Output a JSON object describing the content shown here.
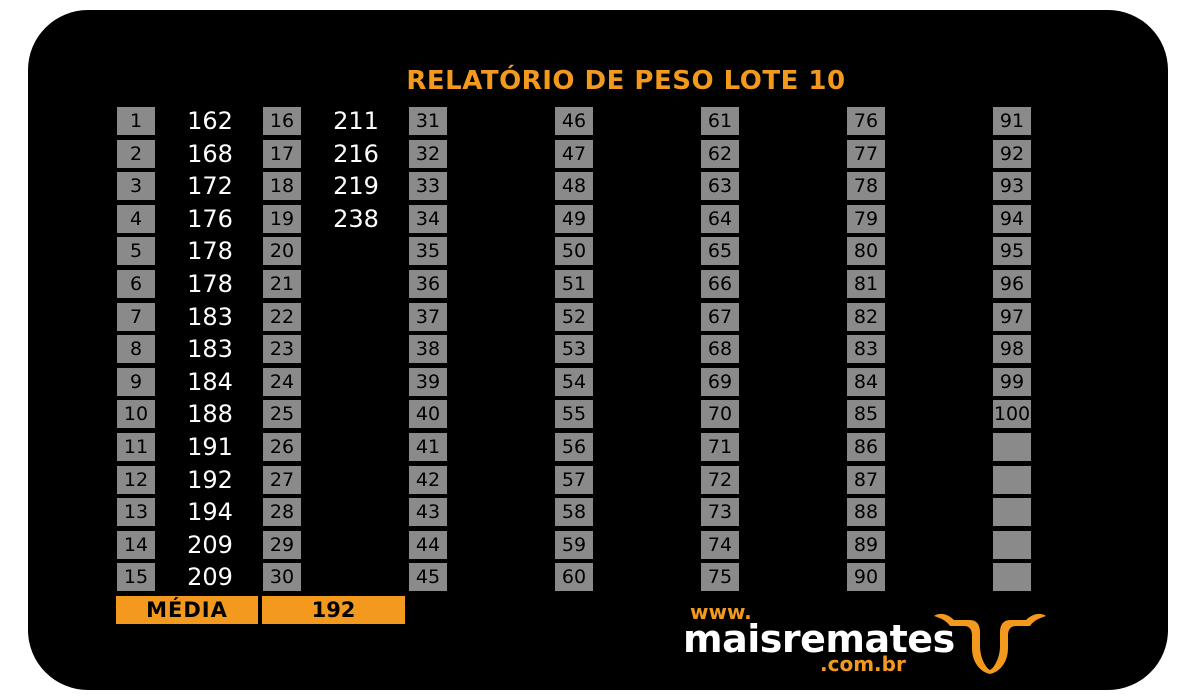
{
  "title": "RELATÓRIO DE PESO LOTE 10",
  "weights": [
    162,
    168,
    172,
    176,
    178,
    178,
    183,
    183,
    184,
    188,
    191,
    192,
    194,
    209,
    209,
    211,
    216,
    219,
    238
  ],
  "columns": [
    {
      "start": 1,
      "end": 15
    },
    {
      "start": 16,
      "end": 30
    },
    {
      "start": 31,
      "end": 45
    },
    {
      "start": 46,
      "end": 60
    },
    {
      "start": 61,
      "end": 75
    },
    {
      "start": 76,
      "end": 90
    },
    {
      "start": 91,
      "end": 100
    }
  ],
  "media": {
    "label": "MÉDIA",
    "value": "192"
  },
  "logo": {
    "www": "www.",
    "name": "maisremates",
    "domain": ".com.br"
  },
  "colors": {
    "accent": "#f39a1e",
    "cell": "#8a8a8a",
    "background": "#000000"
  },
  "icons": {
    "logo": "bull-head-icon"
  }
}
